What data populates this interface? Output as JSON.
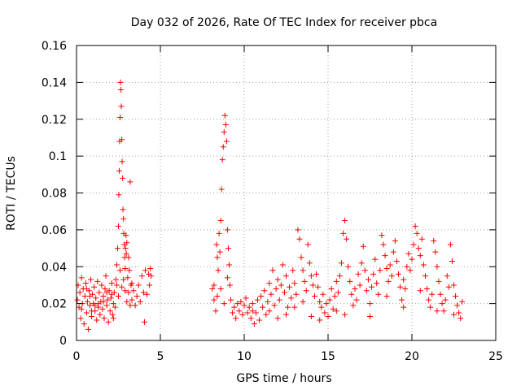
{
  "chart_data": {
    "type": "scatter",
    "title": "Day 032 of 2026, Rate Of TEC Index for receiver pbca",
    "xlabel": "GPS time / hours",
    "ylabel": "ROTI / TECUs",
    "xlim": [
      0,
      25
    ],
    "ylim": [
      0,
      0.16
    ],
    "xticks": [
      0,
      5,
      10,
      15,
      20,
      25
    ],
    "xtick_labels": [
      "0",
      "5",
      "10",
      "15",
      "20",
      "25"
    ],
    "yticks": [
      0,
      0.02,
      0.04,
      0.06,
      0.08,
      0.1,
      0.12,
      0.14,
      0.16
    ],
    "ytick_labels": [
      "0",
      "0.02",
      "0.04",
      "0.06",
      "0.08",
      "0.1",
      "0.12",
      "0.14",
      "0.16"
    ],
    "grid": true,
    "marker": "plus",
    "color": "#ff0000",
    "series": [
      {
        "values": [
          [
            0.05,
            0.022
          ],
          [
            0.1,
            0.03
          ],
          [
            0.15,
            0.018
          ],
          [
            0.2,
            0.026
          ],
          [
            0.25,
            0.012
          ],
          [
            0.3,
            0.034
          ],
          [
            0.35,
            0.02
          ],
          [
            0.4,
            0.028
          ],
          [
            0.45,
            0.009
          ],
          [
            0.5,
            0.024
          ],
          [
            0.55,
            0.031
          ],
          [
            0.6,
            0.015
          ],
          [
            0.65,
            0.021
          ],
          [
            0.7,
            0.006
          ],
          [
            0.75,
            0.027
          ],
          [
            0.8,
            0.019
          ],
          [
            0.85,
            0.033
          ],
          [
            0.9,
            0.013
          ],
          [
            0.95,
            0.025
          ],
          [
            1.0,
            0.02
          ],
          [
            1.05,
            0.029
          ],
          [
            1.1,
            0.016
          ],
          [
            1.15,
            0.023
          ],
          [
            1.2,
            0.011
          ],
          [
            1.25,
            0.032
          ],
          [
            1.3,
            0.018
          ],
          [
            1.35,
            0.026
          ],
          [
            1.4,
            0.014
          ],
          [
            1.45,
            0.021
          ],
          [
            1.5,
            0.03
          ],
          [
            1.55,
            0.017
          ],
          [
            1.6,
            0.024
          ],
          [
            1.65,
            0.012
          ],
          [
            1.7,
            0.028
          ],
          [
            1.75,
            0.035
          ],
          [
            1.8,
            0.019
          ],
          [
            1.85,
            0.022
          ],
          [
            1.9,
            0.01
          ],
          [
            1.95,
            0.027
          ],
          [
            2.0,
            0.016
          ],
          [
            2.05,
            0.023
          ],
          [
            2.1,
            0.031
          ],
          [
            2.15,
            0.014
          ],
          [
            2.2,
            0.02
          ],
          [
            2.25,
            0.026
          ],
          [
            2.3,
            0.018
          ],
          [
            2.35,
            0.033
          ],
          [
            2.4,
            0.041
          ],
          [
            2.45,
            0.05
          ],
          [
            2.5,
            0.062
          ],
          [
            2.52,
            0.079
          ],
          [
            2.55,
            0.092
          ],
          [
            2.57,
            0.108
          ],
          [
            2.6,
            0.121
          ],
          [
            2.62,
            0.14
          ],
          [
            2.65,
            0.136
          ],
          [
            2.67,
            0.127
          ],
          [
            2.7,
            0.109
          ],
          [
            2.72,
            0.097
          ],
          [
            2.75,
            0.088
          ],
          [
            2.77,
            0.071
          ],
          [
            2.8,
            0.066
          ],
          [
            2.82,
            0.058
          ],
          [
            2.85,
            0.052
          ],
          [
            2.87,
            0.045
          ],
          [
            2.9,
            0.039
          ],
          [
            2.92,
            0.05
          ],
          [
            2.95,
            0.057
          ],
          [
            2.97,
            0.047
          ],
          [
            3.0,
            0.053
          ],
          [
            3.05,
            0.034
          ],
          [
            3.1,
            0.045
          ],
          [
            3.15,
            0.038
          ],
          [
            3.2,
            0.086
          ],
          [
            3.25,
            0.03
          ],
          [
            3.3,
            0.022
          ],
          [
            3.4,
            0.027
          ],
          [
            3.5,
            0.019
          ],
          [
            3.6,
            0.024
          ],
          [
            3.7,
            0.03
          ],
          [
            3.8,
            0.021
          ],
          [
            3.9,
            0.035
          ],
          [
            4.0,
            0.026
          ],
          [
            4.05,
            0.01
          ],
          [
            4.1,
            0.038
          ],
          [
            4.2,
            0.025
          ],
          [
            4.3,
            0.036
          ],
          [
            4.35,
            0.03
          ],
          [
            4.4,
            0.039
          ],
          [
            4.45,
            0.035
          ],
          [
            2.4,
            0.03
          ],
          [
            2.5,
            0.024
          ],
          [
            2.6,
            0.038
          ],
          [
            2.7,
            0.029
          ],
          [
            2.8,
            0.033
          ],
          [
            2.9,
            0.027
          ],
          [
            3.0,
            0.021
          ],
          [
            3.1,
            0.026
          ],
          [
            3.2,
            0.019
          ],
          [
            3.3,
            0.031
          ],
          [
            0.3,
            0.017
          ],
          [
            0.8,
            0.024
          ],
          [
            1.3,
            0.02
          ],
          [
            1.8,
            0.026
          ],
          [
            2.2,
            0.012
          ],
          [
            0.6,
            0.028
          ],
          [
            1.1,
            0.019
          ],
          [
            1.6,
            0.021
          ],
          [
            2.1,
            0.025
          ],
          [
            0.9,
            0.016
          ],
          [
            8.1,
            0.028
          ],
          [
            8.2,
            0.022
          ],
          [
            8.3,
            0.016
          ],
          [
            8.35,
            0.052
          ],
          [
            8.4,
            0.045
          ],
          [
            8.45,
            0.038
          ],
          [
            8.5,
            0.058
          ],
          [
            8.55,
            0.048
          ],
          [
            8.6,
            0.065
          ],
          [
            8.65,
            0.082
          ],
          [
            8.7,
            0.098
          ],
          [
            8.75,
            0.105
          ],
          [
            8.8,
            0.113
          ],
          [
            8.85,
            0.122
          ],
          [
            8.9,
            0.117
          ],
          [
            8.95,
            0.108
          ],
          [
            9.0,
            0.06
          ],
          [
            9.05,
            0.05
          ],
          [
            9.1,
            0.041
          ],
          [
            9.15,
            0.03
          ],
          [
            8.2,
            0.03
          ],
          [
            8.4,
            0.024
          ],
          [
            8.6,
            0.028
          ],
          [
            8.8,
            0.02
          ],
          [
            9.0,
            0.034
          ],
          [
            9.2,
            0.022
          ],
          [
            9.3,
            0.015
          ],
          [
            9.4,
            0.018
          ],
          [
            9.5,
            0.012
          ],
          [
            9.6,
            0.02
          ],
          [
            9.7,
            0.016
          ],
          [
            9.8,
            0.021
          ],
          [
            9.9,
            0.014
          ],
          [
            10.0,
            0.019
          ],
          [
            10.1,
            0.023
          ],
          [
            10.2,
            0.015
          ],
          [
            10.3,
            0.018
          ],
          [
            10.4,
            0.012
          ],
          [
            10.5,
            0.02
          ],
          [
            10.6,
            0.009
          ],
          [
            10.7,
            0.015
          ],
          [
            10.8,
            0.022
          ],
          [
            10.9,
            0.011
          ],
          [
            11.0,
            0.024
          ],
          [
            11.1,
            0.018
          ],
          [
            11.2,
            0.027
          ],
          [
            11.3,
            0.014
          ],
          [
            11.4,
            0.021
          ],
          [
            11.5,
            0.031
          ],
          [
            11.6,
            0.025
          ],
          [
            11.7,
            0.038
          ],
          [
            11.8,
            0.019
          ],
          [
            11.9,
            0.028
          ],
          [
            12.0,
            0.033
          ],
          [
            12.1,
            0.022
          ],
          [
            12.2,
            0.03
          ],
          [
            12.3,
            0.041
          ],
          [
            12.4,
            0.026
          ],
          [
            12.5,
            0.035
          ],
          [
            12.6,
            0.018
          ],
          [
            12.7,
            0.029
          ],
          [
            12.8,
            0.023
          ],
          [
            12.9,
            0.038
          ],
          [
            13.0,
            0.031
          ],
          [
            13.1,
            0.025
          ],
          [
            13.2,
            0.06
          ],
          [
            13.3,
            0.055
          ],
          [
            13.4,
            0.045
          ],
          [
            13.5,
            0.038
          ],
          [
            13.6,
            0.032
          ],
          [
            13.7,
            0.027
          ],
          [
            13.8,
            0.052
          ],
          [
            13.9,
            0.042
          ],
          [
            14.0,
            0.035
          ],
          [
            14.1,
            0.03
          ],
          [
            14.2,
            0.024
          ],
          [
            14.3,
            0.036
          ],
          [
            14.4,
            0.029
          ],
          [
            14.5,
            0.021
          ],
          [
            14.6,
            0.018
          ],
          [
            14.7,
            0.025
          ],
          [
            14.8,
            0.015
          ],
          [
            14.9,
            0.02
          ],
          [
            15.0,
            0.013
          ],
          [
            15.1,
            0.022
          ],
          [
            15.2,
            0.028
          ],
          [
            15.3,
            0.017
          ],
          [
            15.4,
            0.024
          ],
          [
            15.5,
            0.032
          ],
          [
            15.6,
            0.026
          ],
          [
            15.7,
            0.035
          ],
          [
            15.8,
            0.042
          ],
          [
            15.9,
            0.058
          ],
          [
            16.0,
            0.065
          ],
          [
            16.1,
            0.055
          ],
          [
            16.2,
            0.04
          ],
          [
            16.3,
            0.032
          ],
          [
            16.4,
            0.025
          ],
          [
            16.5,
            0.019
          ],
          [
            16.6,
            0.028
          ],
          [
            16.7,
            0.022
          ],
          [
            16.8,
            0.036
          ],
          [
            16.9,
            0.03
          ],
          [
            17.0,
            0.042
          ],
          [
            17.1,
            0.051
          ],
          [
            17.2,
            0.038
          ],
          [
            17.3,
            0.027
          ],
          [
            17.4,
            0.033
          ],
          [
            17.5,
            0.02
          ],
          [
            17.6,
            0.029
          ],
          [
            17.7,
            0.036
          ],
          [
            17.8,
            0.044
          ],
          [
            17.9,
            0.031
          ],
          [
            18.0,
            0.025
          ],
          [
            18.1,
            0.038
          ],
          [
            18.2,
            0.057
          ],
          [
            18.3,
            0.052
          ],
          [
            18.4,
            0.046
          ],
          [
            18.5,
            0.039
          ],
          [
            18.6,
            0.032
          ],
          [
            18.7,
            0.041
          ],
          [
            18.8,
            0.035
          ],
          [
            18.9,
            0.048
          ],
          [
            19.0,
            0.054
          ],
          [
            19.1,
            0.043
          ],
          [
            19.2,
            0.036
          ],
          [
            19.3,
            0.029
          ],
          [
            19.4,
            0.022
          ],
          [
            19.5,
            0.033
          ],
          [
            19.6,
            0.028
          ],
          [
            19.7,
            0.04
          ],
          [
            19.8,
            0.047
          ],
          [
            19.9,
            0.038
          ],
          [
            20.0,
            0.044
          ],
          [
            20.1,
            0.052
          ],
          [
            20.2,
            0.062
          ],
          [
            20.3,
            0.058
          ],
          [
            20.4,
            0.05
          ],
          [
            20.5,
            0.046
          ],
          [
            20.6,
            0.055
          ],
          [
            20.7,
            0.041
          ],
          [
            20.8,
            0.035
          ],
          [
            20.9,
            0.028
          ],
          [
            21.0,
            0.022
          ],
          [
            21.1,
            0.018
          ],
          [
            21.2,
            0.025
          ],
          [
            21.3,
            0.054
          ],
          [
            21.4,
            0.048
          ],
          [
            21.5,
            0.04
          ],
          [
            21.6,
            0.032
          ],
          [
            21.7,
            0.025
          ],
          [
            21.8,
            0.02
          ],
          [
            21.9,
            0.016
          ],
          [
            22.0,
            0.022
          ],
          [
            22.1,
            0.035
          ],
          [
            22.2,
            0.029
          ],
          [
            22.3,
            0.052
          ],
          [
            22.4,
            0.043
          ],
          [
            22.5,
            0.03
          ],
          [
            22.6,
            0.024
          ],
          [
            22.7,
            0.019
          ],
          [
            22.8,
            0.015
          ],
          [
            22.9,
            0.012
          ],
          [
            23.0,
            0.021
          ],
          [
            12.0,
            0.012
          ],
          [
            13.0,
            0.018
          ],
          [
            14.0,
            0.013
          ],
          [
            11.5,
            0.016
          ],
          [
            16.0,
            0.014
          ],
          [
            17.5,
            0.013
          ],
          [
            18.5,
            0.024
          ],
          [
            19.5,
            0.018
          ],
          [
            20.5,
            0.027
          ],
          [
            21.5,
            0.016
          ],
          [
            22.5,
            0.014
          ],
          [
            15.5,
            0.016
          ],
          [
            14.5,
            0.011
          ],
          [
            12.5,
            0.014
          ],
          [
            10.5,
            0.016
          ],
          [
            13.5,
            0.021
          ]
        ]
      }
    ]
  }
}
